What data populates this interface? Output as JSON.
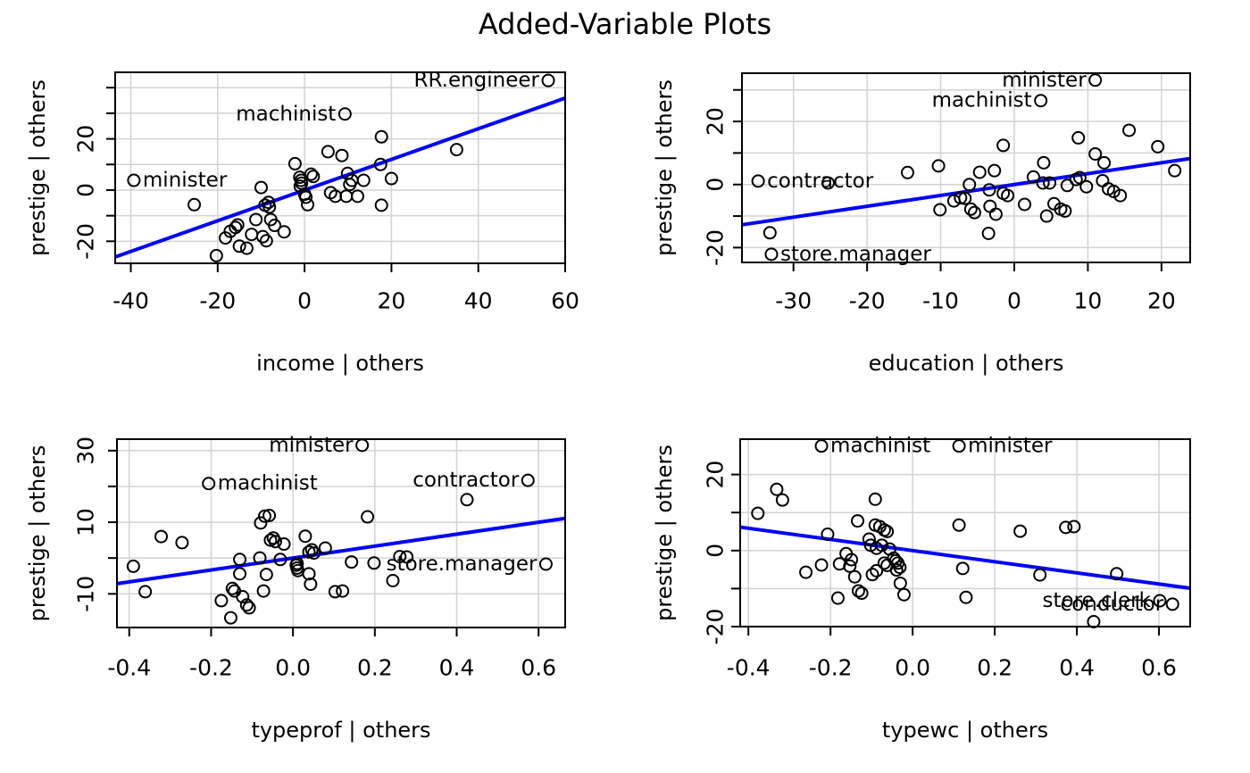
{
  "title": "Added-Variable Plots",
  "colors": {
    "regression_line": "#0000ff",
    "grid": "#d3d3d3",
    "frame": "#000000",
    "point_stroke": "#000000",
    "text": "#000000",
    "background": "#ffffff"
  },
  "chart_data": [
    {
      "type": "scatter",
      "title": "",
      "xlabel": "income | others",
      "ylabel": "prestige | others",
      "xlim": [
        -43.6,
        60
      ],
      "ylim": [
        -28.6,
        46.0
      ],
      "grid": true,
      "xticks": {
        "values": [
          -40,
          -20,
          0,
          20,
          40,
          60
        ],
        "labels": [
          "-40",
          "-20",
          "0",
          "20",
          "40",
          "60"
        ]
      },
      "yticks": {
        "values": [
          40,
          30,
          20,
          10,
          0,
          -10,
          -20
        ],
        "labels": [
          "",
          "",
          "20",
          "",
          "0",
          "",
          "-20"
        ]
      },
      "regression": {
        "slope": 0.599,
        "intercept": 0
      },
      "points": [
        [
          -39.3,
          3.8
        ],
        [
          -25.4,
          -5.7
        ],
        [
          -20.3,
          -25.6
        ],
        [
          -18.2,
          -18.7
        ],
        [
          -17.1,
          -16.1
        ],
        [
          -15.9,
          -14.6
        ],
        [
          -15.4,
          -13.6
        ],
        [
          -15.0,
          -21.9
        ],
        [
          -13.3,
          -22.7
        ],
        [
          -12.2,
          -17.3
        ],
        [
          -11.2,
          -11.5
        ],
        [
          -10.0,
          1.0
        ],
        [
          -9.6,
          -18.2
        ],
        [
          -9.1,
          -5.9
        ],
        [
          -8.8,
          -19.8
        ],
        [
          -8.3,
          -4.8
        ],
        [
          -8.1,
          -6.6
        ],
        [
          -7.8,
          -11.5
        ],
        [
          -6.9,
          -13.8
        ],
        [
          -4.7,
          -16.3
        ],
        [
          -2.2,
          10.3
        ],
        [
          -1.1,
          5.0
        ],
        [
          -0.8,
          3.8
        ],
        [
          -0.7,
          2.7
        ],
        [
          -1.0,
          1.5
        ],
        [
          0.0,
          -1.6
        ],
        [
          0.3,
          -2.8
        ],
        [
          0.7,
          -5.7
        ],
        [
          1.5,
          6.2
        ],
        [
          2.0,
          5.3
        ],
        [
          5.4,
          15.0
        ],
        [
          8.6,
          13.5
        ],
        [
          9.3,
          29.7
        ],
        [
          9.9,
          6.5
        ],
        [
          10.9,
          3.8
        ],
        [
          10.4,
          2.2
        ],
        [
          13.6,
          3.8
        ],
        [
          6.0,
          -1.0
        ],
        [
          7.1,
          -2.4
        ],
        [
          9.6,
          -2.4
        ],
        [
          12.2,
          -2.4
        ],
        [
          17.7,
          20.8
        ],
        [
          17.5,
          10.0
        ],
        [
          17.7,
          -5.9
        ],
        [
          20.0,
          4.5
        ],
        [
          35.0,
          15.8
        ],
        [
          56.1,
          42.8
        ]
      ],
      "point_labels": [
        {
          "text": "minister",
          "point": [
            -39.3,
            3.8
          ],
          "side": "right"
        },
        {
          "text": "machinist",
          "point": [
            9.3,
            29.7
          ],
          "side": "left"
        },
        {
          "text": "RR.engineer",
          "point": [
            56.1,
            42.8
          ],
          "side": "left"
        }
      ]
    },
    {
      "type": "scatter",
      "title": "",
      "xlabel": "education | others",
      "ylabel": "prestige | others",
      "xlim": [
        -37.0,
        23.9
      ],
      "ylim": [
        -24.7,
        35.3
      ],
      "grid": true,
      "xticks": {
        "values": [
          -30,
          -20,
          -10,
          0,
          10,
          20
        ],
        "labels": [
          "-30",
          "-20",
          "-10",
          "0",
          "10",
          "20"
        ]
      },
      "yticks": {
        "values": [
          30,
          20,
          10,
          0,
          -10,
          -20
        ],
        "labels": [
          "",
          "20",
          "",
          "0",
          "",
          "-20"
        ]
      },
      "regression": {
        "slope": 0.345,
        "intercept": 0
      },
      "points": [
        [
          -34.8,
          1.1
        ],
        [
          -33.2,
          -15.3
        ],
        [
          -33.0,
          -22.1
        ],
        [
          -25.3,
          0.5
        ],
        [
          -14.5,
          3.8
        ],
        [
          -10.3,
          5.9
        ],
        [
          -10.1,
          -8.0
        ],
        [
          -8.2,
          -5.2
        ],
        [
          -7.3,
          -4.2
        ],
        [
          -6.7,
          -4.4
        ],
        [
          -6.1,
          0.0
        ],
        [
          -5.9,
          -7.8
        ],
        [
          -5.4,
          -8.9
        ],
        [
          -4.7,
          3.9
        ],
        [
          -3.5,
          -15.5
        ],
        [
          -3.4,
          -1.7
        ],
        [
          -3.3,
          -6.9
        ],
        [
          -2.7,
          4.4
        ],
        [
          -2.5,
          -9.4
        ],
        [
          -1.5,
          12.4
        ],
        [
          -1.5,
          -2.8
        ],
        [
          -0.9,
          -3.5
        ],
        [
          1.4,
          -6.3
        ],
        [
          2.6,
          2.4
        ],
        [
          3.6,
          26.6
        ],
        [
          3.9,
          0.5
        ],
        [
          4.0,
          6.9
        ],
        [
          4.4,
          -10.0
        ],
        [
          4.8,
          0.5
        ],
        [
          5.4,
          -6.1
        ],
        [
          6.3,
          -7.8
        ],
        [
          6.9,
          -8.4
        ],
        [
          7.2,
          -0.3
        ],
        [
          8.4,
          1.6
        ],
        [
          8.7,
          14.8
        ],
        [
          8.9,
          2.2
        ],
        [
          9.8,
          -0.7
        ],
        [
          11.0,
          33.1
        ],
        [
          11.0,
          9.7
        ],
        [
          12.0,
          1.2
        ],
        [
          12.2,
          6.9
        ],
        [
          12.8,
          -1.4
        ],
        [
          13.5,
          -2.2
        ],
        [
          14.4,
          -3.5
        ],
        [
          15.6,
          17.2
        ],
        [
          19.5,
          12.0
        ],
        [
          21.8,
          4.4
        ]
      ],
      "point_labels": [
        {
          "text": "contractor",
          "point": [
            -34.8,
            1.1
          ],
          "side": "right"
        },
        {
          "text": "store.manager",
          "point": [
            -33.0,
            -22.1
          ],
          "side": "right"
        },
        {
          "text": "machinist",
          "point": [
            3.6,
            26.6
          ],
          "side": "left"
        },
        {
          "text": "minister",
          "point": [
            11.0,
            33.1
          ],
          "side": "left"
        }
      ]
    },
    {
      "type": "scatter",
      "title": "",
      "xlabel": "typeprof | others",
      "ylabel": "prestige | others",
      "xlim": [
        -0.43,
        0.665
      ],
      "ylim": [
        -19.4,
        33.2
      ],
      "grid": true,
      "xticks": {
        "values": [
          -0.4,
          -0.2,
          0.0,
          0.2,
          0.4,
          0.6
        ],
        "labels": [
          "-0.4",
          "-0.2",
          "0.0",
          "0.2",
          "0.4",
          "0.6"
        ]
      },
      "yticks": {
        "values": [
          30,
          20,
          10,
          0,
          -10
        ],
        "labels": [
          "30",
          "",
          "10",
          "",
          "-10"
        ]
      },
      "regression": {
        "slope": 16.66,
        "intercept": 0
      },
      "points": [
        [
          -0.39,
          -2.3
        ],
        [
          -0.361,
          -9.4
        ],
        [
          -0.322,
          6.0
        ],
        [
          -0.271,
          4.3
        ],
        [
          -0.206,
          20.8
        ],
        [
          -0.175,
          -11.9
        ],
        [
          -0.152,
          -16.7
        ],
        [
          -0.148,
          -8.5
        ],
        [
          -0.143,
          -9.2
        ],
        [
          -0.13,
          -0.4
        ],
        [
          -0.13,
          -4.4
        ],
        [
          -0.123,
          -10.8
        ],
        [
          -0.113,
          -13.1
        ],
        [
          -0.107,
          -13.9
        ],
        [
          -0.081,
          0.0
        ],
        [
          -0.079,
          9.8
        ],
        [
          -0.072,
          -9.2
        ],
        [
          -0.069,
          11.7
        ],
        [
          -0.058,
          11.9
        ],
        [
          -0.065,
          -4.6
        ],
        [
          -0.055,
          5.0
        ],
        [
          -0.048,
          5.6
        ],
        [
          -0.043,
          4.6
        ],
        [
          -0.031,
          -0.4
        ],
        [
          -0.022,
          3.9
        ],
        [
          0.008,
          -2.0
        ],
        [
          0.01,
          -2.8
        ],
        [
          0.012,
          -3.5
        ],
        [
          0.01,
          -1.5
        ],
        [
          0.03,
          6.1
        ],
        [
          0.039,
          1.7
        ],
        [
          0.046,
          2.3
        ],
        [
          0.051,
          1.4
        ],
        [
          0.039,
          -4.4
        ],
        [
          0.043,
          -7.3
        ],
        [
          0.079,
          2.8
        ],
        [
          0.103,
          -9.4
        ],
        [
          0.121,
          -9.2
        ],
        [
          0.143,
          -1.1
        ],
        [
          0.169,
          31.5
        ],
        [
          0.182,
          11.5
        ],
        [
          0.198,
          -1.4
        ],
        [
          0.244,
          -6.3
        ],
        [
          0.261,
          0.4
        ],
        [
          0.278,
          0.3
        ],
        [
          0.425,
          16.3
        ],
        [
          0.574,
          21.7
        ],
        [
          0.618,
          -1.7
        ]
      ],
      "point_labels": [
        {
          "text": "machinist",
          "point": [
            -0.206,
            20.8
          ],
          "side": "right"
        },
        {
          "text": "minister",
          "point": [
            0.169,
            31.5
          ],
          "side": "left"
        },
        {
          "text": "contractor",
          "point": [
            0.574,
            21.7
          ],
          "side": "left"
        },
        {
          "text": "store.manager",
          "point": [
            0.618,
            -1.7
          ],
          "side": "left"
        }
      ]
    },
    {
      "type": "scatter",
      "title": "",
      "xlabel": "typewc | others",
      "ylabel": "prestige | others",
      "xlim": [
        -0.42,
        0.676
      ],
      "ylim": [
        -20.0,
        29.3
      ],
      "grid": true,
      "xticks": {
        "values": [
          -0.4,
          -0.2,
          0.0,
          0.2,
          0.4,
          0.6
        ],
        "labels": [
          "-0.4",
          "-0.2",
          "0.0",
          "0.2",
          "0.4",
          "0.6"
        ]
      },
      "yticks": {
        "values": [
          20,
          10,
          0,
          -10,
          -20
        ],
        "labels": [
          "20",
          "",
          "0",
          "",
          "-20"
        ]
      },
      "regression": {
        "slope": -14.66,
        "intercept": 0
      },
      "points": [
        [
          -0.377,
          9.8
        ],
        [
          -0.331,
          16.1
        ],
        [
          -0.317,
          13.3
        ],
        [
          -0.26,
          -5.7
        ],
        [
          -0.222,
          27.5
        ],
        [
          -0.222,
          -3.8
        ],
        [
          -0.207,
          4.3
        ],
        [
          -0.182,
          -12.5
        ],
        [
          -0.178,
          -3.5
        ],
        [
          -0.162,
          -0.8
        ],
        [
          -0.153,
          -4.1
        ],
        [
          -0.149,
          -2.4
        ],
        [
          -0.141,
          -6.9
        ],
        [
          -0.134,
          7.8
        ],
        [
          -0.132,
          -10.6
        ],
        [
          -0.124,
          -11.2
        ],
        [
          -0.106,
          3.0
        ],
        [
          -0.102,
          1.4
        ],
        [
          -0.098,
          -6.3
        ],
        [
          -0.091,
          13.5
        ],
        [
          -0.091,
          6.7
        ],
        [
          -0.088,
          0.6
        ],
        [
          -0.088,
          -5.3
        ],
        [
          -0.08,
          6.3
        ],
        [
          -0.075,
          1.4
        ],
        [
          -0.069,
          5.4
        ],
        [
          -0.069,
          -3.3
        ],
        [
          -0.062,
          5.0
        ],
        [
          -0.062,
          -3.9
        ],
        [
          -0.056,
          0.4
        ],
        [
          -0.046,
          -2.0
        ],
        [
          -0.041,
          -2.7
        ],
        [
          -0.039,
          -5.1
        ],
        [
          -0.036,
          -3.3
        ],
        [
          -0.031,
          -4.4
        ],
        [
          -0.03,
          -8.6
        ],
        [
          -0.021,
          -11.6
        ],
        [
          0.113,
          27.5
        ],
        [
          0.113,
          6.7
        ],
        [
          0.122,
          -4.7
        ],
        [
          0.13,
          -12.3
        ],
        [
          0.262,
          5.1
        ],
        [
          0.31,
          -6.4
        ],
        [
          0.373,
          6.1
        ],
        [
          0.393,
          6.3
        ],
        [
          0.441,
          -18.7
        ],
        [
          0.497,
          -6.1
        ],
        [
          0.602,
          -13.2
        ],
        [
          0.633,
          -14.1
        ]
      ],
      "point_labels": [
        {
          "text": "machinist",
          "point": [
            -0.222,
            27.5
          ],
          "side": "right"
        },
        {
          "text": "minister",
          "point": [
            0.113,
            27.5
          ],
          "side": "right"
        },
        {
          "text": "store.clerk",
          "point": [
            0.602,
            -13.2
          ],
          "side": "left"
        },
        {
          "text": "conductor",
          "point": [
            0.633,
            -14.1
          ],
          "side": "left"
        }
      ]
    }
  ]
}
